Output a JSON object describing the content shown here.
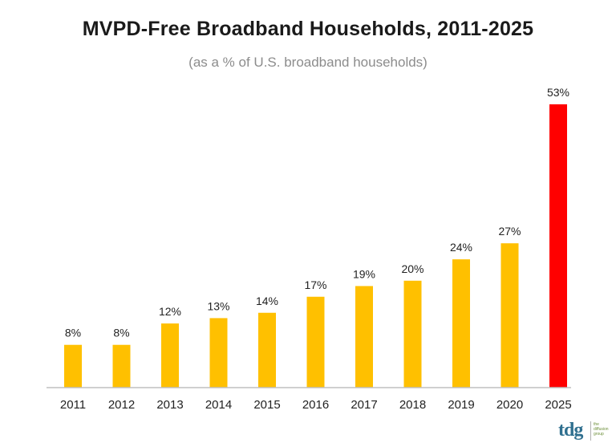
{
  "chart_data": {
    "type": "bar",
    "title": "MVPD-Free Broadband Households, 2011-2025",
    "subtitle": "(as a % of U.S. broadband households)",
    "categories": [
      "2011",
      "2012",
      "2013",
      "2014",
      "2015",
      "2016",
      "2017",
      "2018",
      "2019",
      "2020",
      "2025"
    ],
    "values": [
      8,
      8,
      12,
      13,
      14,
      17,
      19,
      20,
      24,
      27,
      53
    ],
    "labels": [
      "8%",
      "8%",
      "12%",
      "13%",
      "14%",
      "17%",
      "19%",
      "20%",
      "24%",
      "27%",
      "53%"
    ],
    "unit": "%",
    "ylim": [
      0,
      53
    ],
    "grid": false,
    "colors": {
      "bar": "#FFC000",
      "highlight": "#FF0000",
      "axis": "#bfbfbf"
    },
    "highlight_categories": [
      "2025"
    ]
  },
  "logo": {
    "mark": "tdg",
    "text": "the diffusion group"
  }
}
